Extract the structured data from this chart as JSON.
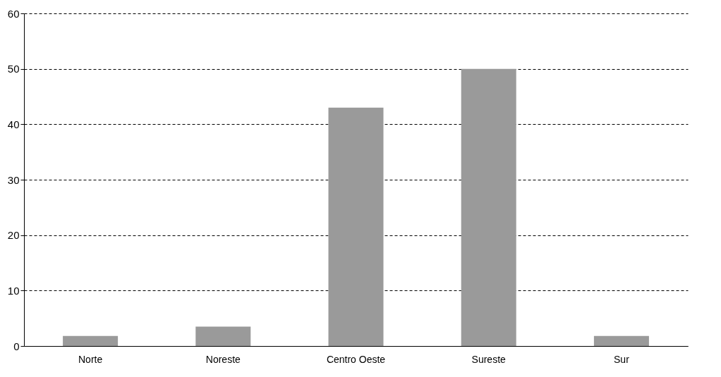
{
  "chart_data": {
    "type": "bar",
    "categories": [
      "Norte",
      "Noreste",
      "Centro Oeste",
      "Sureste",
      "Sur"
    ],
    "values": [
      1.8,
      3.5,
      43,
      50,
      1.8
    ],
    "color": "#9a9a9a",
    "ylim": [
      0,
      60
    ],
    "yticks": [
      0,
      10,
      20,
      30,
      40,
      50,
      60
    ],
    "grid": "y",
    "line_style": "dashed"
  }
}
